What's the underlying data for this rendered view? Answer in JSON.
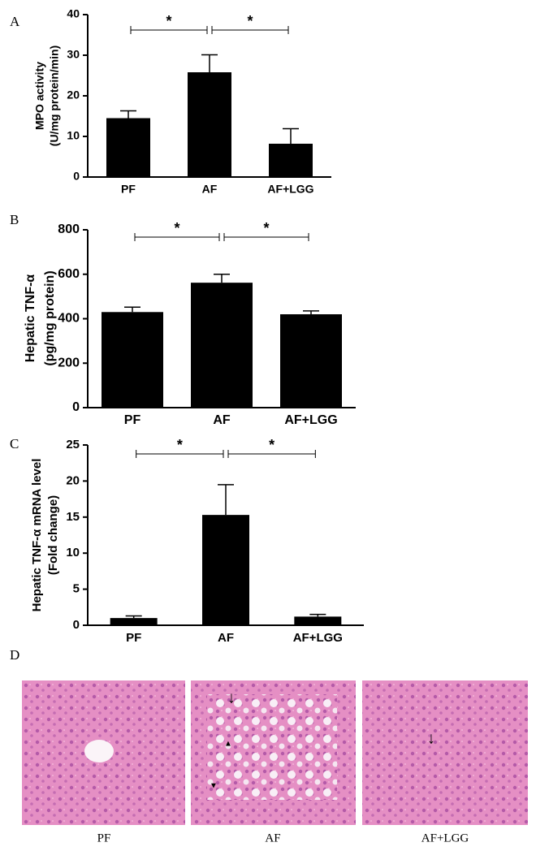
{
  "chart_data": [
    {
      "type": "bar",
      "panel": "A",
      "ylabel": [
        "MPO activity",
        "(U/mg protein/min)"
      ],
      "categories": [
        "PF",
        "AF",
        "AF+LGG"
      ],
      "values": [
        14.5,
        25.8,
        8.2
      ],
      "errors": [
        1.8,
        4.3,
        3.7
      ],
      "color": "#000000",
      "ylim": [
        0,
        40
      ],
      "yticks": [
        0,
        10,
        20,
        30,
        40
      ],
      "annotations": [
        "*",
        "*"
      ]
    },
    {
      "type": "bar",
      "panel": "B",
      "ylabel": [
        "Hepatic TNF-α",
        "(pg/mg protein)"
      ],
      "categories": [
        "PF",
        "AF",
        "AF+LGG"
      ],
      "values": [
        430,
        562,
        420
      ],
      "errors": [
        22,
        38,
        15
      ],
      "color": "#000000",
      "ylim": [
        0,
        800
      ],
      "yticks": [
        0,
        200,
        400,
        600,
        800
      ],
      "annotations": [
        "*",
        "*"
      ]
    },
    {
      "type": "bar",
      "panel": "C",
      "ylabel": [
        "Hepatic TNF-α mRNA level",
        "(Fold change)"
      ],
      "categories": [
        "PF",
        "AF",
        "AF+LGG"
      ],
      "values": [
        1.0,
        15.3,
        1.2
      ],
      "errors": [
        0.3,
        4.2,
        0.3
      ],
      "color": "#000000",
      "ylim": [
        0,
        25
      ],
      "yticks": [
        0,
        5,
        10,
        15,
        20,
        25
      ],
      "annotations": [
        "*",
        "*"
      ]
    }
  ],
  "histology": {
    "panel": "D",
    "labels": [
      "PF",
      "AF",
      "AF+LGG"
    ]
  }
}
